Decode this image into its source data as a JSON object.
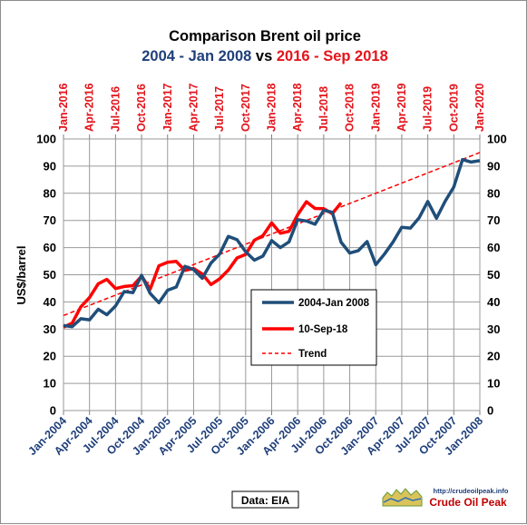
{
  "chart_data": {
    "type": "line",
    "title": "Comparison  Brent oil price",
    "subtitle_part1": "2004 - Jan 2008",
    "subtitle_vs": " vs ",
    "subtitle_part2": "2016 -  Sep 2018",
    "ylabel": "US$/barrel",
    "ylim": [
      0,
      100
    ],
    "yticks": [
      0,
      10,
      20,
      30,
      40,
      50,
      60,
      70,
      80,
      90,
      100
    ],
    "grid": true,
    "legend_placement": "center-right",
    "x_bottom_ticks": [
      "Jan-2004",
      "Apr-2004",
      "Jul-2004",
      "Oct-2004",
      "Jan-2005",
      "Apr-2005",
      "Jul-2005",
      "Oct-2005",
      "Jan-2006",
      "Apr-2006",
      "Jul-2006",
      "Oct-2006",
      "Jan-2007",
      "Apr-2007",
      "Jul-2007",
      "Oct-2007",
      "Jan-2008"
    ],
    "x_top_ticks": [
      "Jan-2016",
      "Apr-2016",
      "Jul-2016",
      "Oct-2016",
      "Jan-2017",
      "Apr-2017",
      "Jul-2017",
      "Oct-2017",
      "Jan-2018",
      "Apr-2018",
      "Jul-2018",
      "Oct-2018",
      "Jan-2019",
      "Apr-2019",
      "Jul-2019",
      "Oct-2019",
      "Jan-2020"
    ],
    "series": [
      {
        "name": "2004-Jan 2008",
        "color": "#1f4e79",
        "x": [
          "Jan-2004",
          "Feb-2004",
          "Mar-2004",
          "Apr-2004",
          "May-2004",
          "Jun-2004",
          "Jul-2004",
          "Aug-2004",
          "Sep-2004",
          "Oct-2004",
          "Nov-2004",
          "Dec-2004",
          "Jan-2005",
          "Feb-2005",
          "Mar-2005",
          "Apr-2005",
          "May-2005",
          "Jun-2005",
          "Jul-2005",
          "Aug-2005",
          "Sep-2005",
          "Oct-2005",
          "Nov-2005",
          "Dec-2005",
          "Jan-2006",
          "Feb-2006",
          "Mar-2006",
          "Apr-2006",
          "May-2006",
          "Jun-2006",
          "Jul-2006",
          "Aug-2006",
          "Sep-2006",
          "Oct-2006",
          "Nov-2006",
          "Dec-2006",
          "Jan-2007",
          "Feb-2007",
          "Mar-2007",
          "Apr-2007",
          "May-2007",
          "Jun-2007",
          "Jul-2007",
          "Aug-2007",
          "Sep-2007",
          "Oct-2007",
          "Nov-2007",
          "Dec-2007",
          "Jan-2008"
        ],
        "values": [
          31.3,
          30.9,
          33.8,
          33.4,
          37.3,
          35.3,
          38.5,
          43.8,
          43.4,
          49.8,
          43.1,
          39.7,
          44.3,
          45.5,
          53.1,
          51.9,
          48.7,
          54.3,
          57.6,
          64.1,
          62.9,
          58.5,
          55.4,
          56.9,
          62.6,
          60.0,
          62.1,
          70.3,
          69.8,
          68.6,
          73.7,
          73.0,
          62.0,
          58.0,
          58.9,
          62.2,
          53.7,
          57.6,
          62.1,
          67.5,
          67.2,
          71.0,
          77.0,
          70.8,
          77.1,
          82.3,
          92.4,
          91.5,
          92.0
        ]
      },
      {
        "name": "10-Sep-18",
        "color": "#ff0000",
        "x": [
          "Jan-2016",
          "Feb-2016",
          "Mar-2016",
          "Apr-2016",
          "May-2016",
          "Jun-2016",
          "Jul-2016",
          "Aug-2016",
          "Sep-2016",
          "Oct-2016",
          "Nov-2016",
          "Dec-2016",
          "Jan-2017",
          "Feb-2017",
          "Mar-2017",
          "Apr-2017",
          "May-2017",
          "Jun-2017",
          "Jul-2017",
          "Aug-2017",
          "Sep-2017",
          "Oct-2017",
          "Nov-2017",
          "Dec-2017",
          "Jan-2018",
          "Feb-2018",
          "Mar-2018",
          "Apr-2018",
          "May-2018",
          "Jun-2018",
          "Jul-2018",
          "Aug-2018",
          "Sep-2018"
        ],
        "values": [
          30.7,
          32.2,
          38.2,
          41.6,
          46.7,
          48.3,
          44.9,
          45.7,
          46.0,
          49.5,
          44.7,
          53.3,
          54.6,
          54.9,
          51.6,
          52.3,
          50.3,
          46.4,
          48.5,
          51.7,
          56.2,
          57.5,
          62.7,
          64.4,
          69.1,
          65.3,
          66.0,
          72.1,
          76.9,
          74.4,
          74.3,
          72.5,
          76.5
        ]
      },
      {
        "name": "Trend",
        "color": "#ff0000",
        "dashed": true,
        "x": [
          "Jan-2004",
          "Jan-2008"
        ],
        "values": [
          35.0,
          95.0
        ]
      }
    ]
  },
  "source_label": "Data: EIA",
  "logo": {
    "url": "http://crudeoilpeak.info",
    "name": "Crude Oil Peak"
  }
}
